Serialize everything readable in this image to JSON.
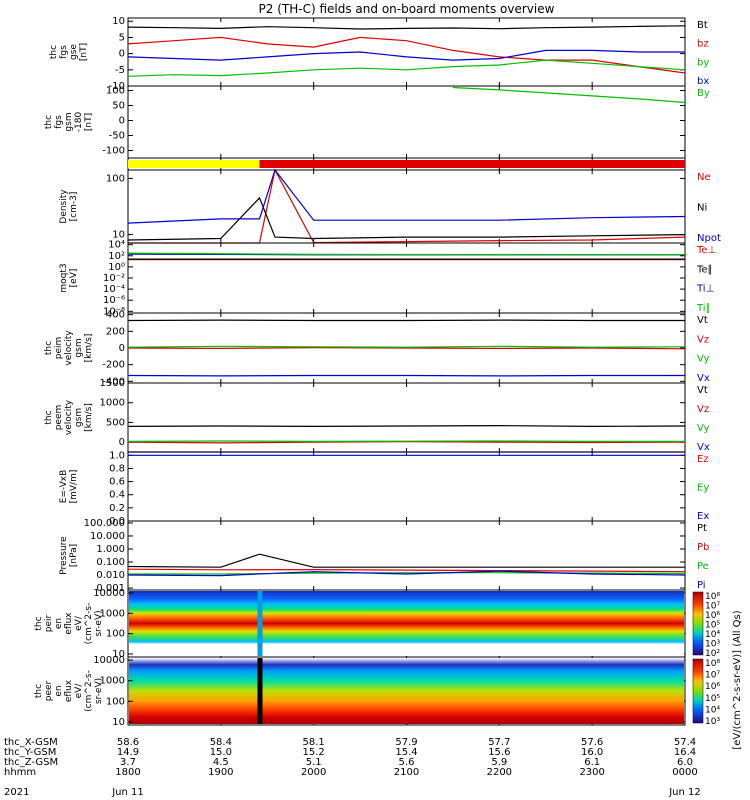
{
  "title": "P2 (TH-C) fields and on-board moments overview",
  "colors": {
    "black": "#000000",
    "red": "#e00000",
    "green": "#00c000",
    "blue": "#0000d0",
    "yellow": "#ffff00",
    "bar_red": "#e00000"
  },
  "time_axis": {
    "start_hhmm": "1800",
    "end_hhmm": "0000",
    "ticks": [
      "1800",
      "1900",
      "2000",
      "2100",
      "2200",
      "2300",
      "0000"
    ],
    "date_labels": [
      "Jun 11",
      "Jun 12"
    ],
    "year": "2021",
    "rows": [
      {
        "label": "thc_X-GSM",
        "values": [
          "58.6",
          "58.4",
          "58.1",
          "57.9",
          "57.7",
          "57.6",
          "57.4"
        ]
      },
      {
        "label": "thc_Y-GSM",
        "values": [
          "14.9",
          "15.0",
          "15.2",
          "15.4",
          "15.6",
          "16.0",
          "16.4"
        ]
      },
      {
        "label": "thc_Z-GSM",
        "values": [
          "3.7",
          "4.5",
          "5.1",
          "5.6",
          "5.9",
          "6.1",
          "6.0"
        ]
      },
      {
        "label": "hhmm",
        "values": [
          "1800",
          "1900",
          "2000",
          "2100",
          "2200",
          "2300",
          "0000"
        ]
      }
    ]
  },
  "chart_data": [
    {
      "type": "line",
      "ylabel": "thc fgs gse [nT]",
      "ylim": [
        -10,
        11
      ],
      "yticks": [
        "10",
        "5",
        "0",
        "-5",
        "-10"
      ],
      "series": [
        {
          "name": "Bt",
          "color": "#000000",
          "x": [
            "1800",
            "1830",
            "1900",
            "1930",
            "2000",
            "2030",
            "2100",
            "2130",
            "2200",
            "2230",
            "2300",
            "2330",
            "0000"
          ],
          "values": [
            8.2,
            8.0,
            7.8,
            8.3,
            8.0,
            7.6,
            7.8,
            7.9,
            7.7,
            8.0,
            8.2,
            8.4,
            8.6
          ]
        },
        {
          "name": "bz",
          "color": "#e00000",
          "x": [
            "1800",
            "1830",
            "1900",
            "1930",
            "2000",
            "2030",
            "2100",
            "2130",
            "2200",
            "2230",
            "2300",
            "2330",
            "0000"
          ],
          "values": [
            3.0,
            4.0,
            5.0,
            3.0,
            2.0,
            5.0,
            4.0,
            1.0,
            -1.0,
            -2.0,
            -2.0,
            -4.0,
            -6.0
          ]
        },
        {
          "name": "by",
          "color": "#00c000",
          "x": [
            "1800",
            "1830",
            "1900",
            "1930",
            "2000",
            "2030",
            "2100",
            "2130",
            "2200",
            "2230",
            "2300",
            "2330",
            "0000"
          ],
          "values": [
            -7.0,
            -6.5,
            -6.8,
            -6.0,
            -5.0,
            -4.5,
            -5.0,
            -4.0,
            -3.5,
            -2.0,
            -3.0,
            -4.0,
            -5.0
          ]
        },
        {
          "name": "bx",
          "color": "#0000d0",
          "x": [
            "1800",
            "1830",
            "1900",
            "1930",
            "2000",
            "2030",
            "2100",
            "2130",
            "2200",
            "2230",
            "2300",
            "2330",
            "0000"
          ],
          "values": [
            -1.0,
            -1.5,
            -2.0,
            -1.0,
            0.0,
            0.5,
            -1.0,
            -2.0,
            -1.5,
            1.0,
            1.0,
            0.5,
            0.5
          ]
        }
      ]
    },
    {
      "type": "line",
      "ylabel": "thc fgs gsm -180 [nT]",
      "ylim": [
        -125,
        115
      ],
      "yticks": [
        "100",
        "50",
        "0",
        "-50",
        "-100"
      ],
      "series": [
        {
          "name": "By",
          "color": "#00c000",
          "x": [
            "2130",
            "2200",
            "2230",
            "2300",
            "2330",
            "0000"
          ],
          "values": [
            110,
            102,
            92,
            82,
            72,
            60
          ]
        }
      ]
    },
    {
      "type": "bar",
      "ylabel": "",
      "segments": [
        {
          "from": "1800",
          "to": "1925",
          "color": "#ffff00"
        },
        {
          "from": "1925",
          "to": "0000",
          "color": "#e00000"
        }
      ]
    },
    {
      "type": "line",
      "ylabel": "Density [cm-3]",
      "yscale": "log",
      "yticks": [
        "100",
        "10"
      ],
      "series": [
        {
          "name": "Ne",
          "color": "#e00000",
          "x": [
            "1800",
            "1900",
            "1925",
            "1935",
            "2000",
            "2100",
            "2200",
            "2300",
            "0000"
          ],
          "values": [
            6.5,
            7.0,
            7.0,
            200,
            7.2,
            7.5,
            7.8,
            8.0,
            9.0
          ]
        },
        {
          "name": "Ni",
          "color": "#000000",
          "x": [
            "1800",
            "1900",
            "1925",
            "1935",
            "2000",
            "2100",
            "2200",
            "2300",
            "0000"
          ],
          "values": [
            8.0,
            8.5,
            45,
            9.0,
            8.5,
            9.0,
            9.0,
            9.5,
            10.0
          ]
        },
        {
          "name": "Npot",
          "color": "#0000d0",
          "x": [
            "1800",
            "1900",
            "1925",
            "1935",
            "2000",
            "2100",
            "2200",
            "2300",
            "0000"
          ],
          "values": [
            16,
            19,
            19,
            200,
            18,
            18,
            18,
            20,
            21
          ]
        }
      ]
    },
    {
      "type": "line",
      "ylabel": "moqt3 [eV]",
      "yscale": "log",
      "yticks": [
        "10⁴",
        "10²",
        "10⁰",
        "10⁻²",
        "10⁻⁴",
        "10⁻⁶",
        "10⁻⁸"
      ],
      "series": [
        {
          "name": "Te⊥",
          "color": "#e00000",
          "x": [
            "1800",
            "2000",
            "0000"
          ],
          "values": [
            20,
            20,
            20
          ]
        },
        {
          "name": "Te∥",
          "color": "#000000",
          "x": [
            "1800",
            "2000",
            "0000"
          ],
          "values": [
            25,
            25,
            25
          ]
        },
        {
          "name": "Ti⊥",
          "color": "#0000d0",
          "x": [
            "1800",
            "2000",
            "0000"
          ],
          "values": [
            200,
            150,
            150
          ]
        },
        {
          "name": "Ti∥",
          "color": "#00c000",
          "x": [
            "1800",
            "2000",
            "0000"
          ],
          "values": [
            300,
            180,
            160
          ]
        }
      ]
    },
    {
      "type": "line",
      "ylabel": "thc peim velocity gsm [km/s]",
      "ylim": [
        -420,
        420
      ],
      "yticks": [
        "400",
        "200",
        "0",
        "-200",
        "-400"
      ],
      "series": [
        {
          "name": "Vt",
          "color": "#000000",
          "x": [
            "1800",
            "1900",
            "2000",
            "2100",
            "2200",
            "2300",
            "0000"
          ],
          "values": [
            330,
            335,
            330,
            330,
            335,
            330,
            330
          ]
        },
        {
          "name": "Vz",
          "color": "#e00000",
          "x": [
            "1800",
            "1900",
            "2000",
            "2100",
            "2200",
            "2300",
            "0000"
          ],
          "values": [
            0,
            -5,
            5,
            0,
            -5,
            0,
            -10
          ]
        },
        {
          "name": "Vy",
          "color": "#00c000",
          "x": [
            "1800",
            "1900",
            "2000",
            "2100",
            "2200",
            "2300",
            "0000"
          ],
          "values": [
            10,
            20,
            15,
            10,
            20,
            10,
            15
          ]
        },
        {
          "name": "Vx",
          "color": "#0000d0",
          "x": [
            "1800",
            "1900",
            "2000",
            "2100",
            "2200",
            "2300",
            "0000"
          ],
          "values": [
            -330,
            -335,
            -330,
            -330,
            -335,
            -330,
            -330
          ]
        }
      ]
    },
    {
      "type": "line",
      "ylabel": "thc peem velocity gsm [km/s]",
      "ylim": [
        -250,
        1500
      ],
      "yticks": [
        "1500",
        "1000",
        "500",
        "0"
      ],
      "series": [
        {
          "name": "Vt",
          "color": "#000000",
          "x": [
            "1800",
            "1900",
            "2000",
            "2100",
            "2200",
            "2300",
            "0000"
          ],
          "values": [
            400,
            410,
            400,
            410,
            420,
            400,
            410
          ]
        },
        {
          "name": "Vz",
          "color": "#e00000",
          "x": [
            "1800",
            "1900",
            "2000",
            "2100",
            "2200",
            "2300",
            "0000"
          ],
          "values": [
            0,
            -20,
            0,
            10,
            0,
            -10,
            0
          ]
        },
        {
          "name": "Vy",
          "color": "#00c000",
          "x": [
            "1800",
            "1900",
            "2000",
            "2100",
            "2200",
            "2300",
            "0000"
          ],
          "values": [
            20,
            30,
            20,
            25,
            30,
            20,
            20
          ]
        },
        {
          "name": "Vx",
          "color": "#0000d0",
          "x": [
            "1800",
            "1900",
            "2000",
            "2100",
            "2200",
            "2300",
            "0000"
          ],
          "values": [
            -350,
            -360,
            -350,
            -360,
            -355,
            -350,
            -355
          ]
        }
      ]
    },
    {
      "type": "line",
      "ylabel": "E=-VxB [mV/m]",
      "ylim": [
        0,
        1.05
      ],
      "yticks": [
        "1.0",
        "0.8",
        "0.6",
        "0.4",
        "0.2",
        "0.0"
      ],
      "series": [
        {
          "name": "Ez",
          "color": "#e00000",
          "x": [],
          "values": []
        },
        {
          "name": "Ey",
          "color": "#00c000",
          "x": [],
          "values": []
        },
        {
          "name": "Ex",
          "color": "#0000d0",
          "x": [
            "1800",
            "1925",
            "1935",
            "0000"
          ],
          "values": [
            1.0,
            1.0,
            1.0,
            1.0
          ]
        }
      ]
    },
    {
      "type": "line",
      "ylabel": "Pressure [nPa]",
      "yscale": "log",
      "yticks": [
        "100.000",
        "10.000",
        "1.000",
        "0.100",
        "0.010",
        "0.001"
      ],
      "series": [
        {
          "name": "Pt",
          "color": "#000000",
          "x": [
            "1800",
            "1900",
            "1925",
            "2000",
            "2100",
            "2200",
            "2300",
            "0000"
          ],
          "values": [
            0.045,
            0.04,
            0.4,
            0.04,
            0.04,
            0.04,
            0.04,
            0.04
          ]
        },
        {
          "name": "Pb",
          "color": "#e00000",
          "x": [
            "1800",
            "1900",
            "2000",
            "2100",
            "2200",
            "2300",
            "0000"
          ],
          "values": [
            0.028,
            0.025,
            0.026,
            0.024,
            0.022,
            0.02,
            0.018
          ]
        },
        {
          "name": "Pe",
          "color": "#00c000",
          "x": [
            "1800",
            "1900",
            "2000",
            "2100",
            "2200",
            "2300",
            "0000"
          ],
          "values": [
            0.012,
            0.012,
            0.014,
            0.015,
            0.015,
            0.014,
            0.013
          ]
        },
        {
          "name": "Pi",
          "color": "#0000d0",
          "x": [
            "1800",
            "1900",
            "2000",
            "2100",
            "2200",
            "2300",
            "0000"
          ],
          "values": [
            0.01,
            0.009,
            0.018,
            0.012,
            0.02,
            0.012,
            0.01
          ]
        }
      ]
    },
    {
      "type": "heatmap",
      "ylabel": "thc peir en eflux eV/ (cm^2-s- sr-eV)",
      "yscale": "log",
      "yticks": [
        "10000",
        "1000",
        "100",
        "10"
      ],
      "colorbar_label": "[eV/(cm^2-s-sr-eV)] (All Qs)",
      "colorbar_ticks": [
        "10⁸",
        "10⁷",
        "10⁶",
        "10⁵",
        "10⁴",
        "10³",
        "10²"
      ]
    },
    {
      "type": "heatmap",
      "ylabel": "thc peer en eflux eV/ (cm^2-s- sr-eV)",
      "yscale": "log",
      "yticks": [
        "10000",
        "1000",
        "100",
        "10"
      ],
      "colorbar_label": "[eV/(cm^2-s-sr-eV)]",
      "colorbar_ticks": [
        "10⁸",
        "10⁷",
        "10⁶",
        "10⁵",
        "10⁴",
        "10³"
      ]
    }
  ]
}
